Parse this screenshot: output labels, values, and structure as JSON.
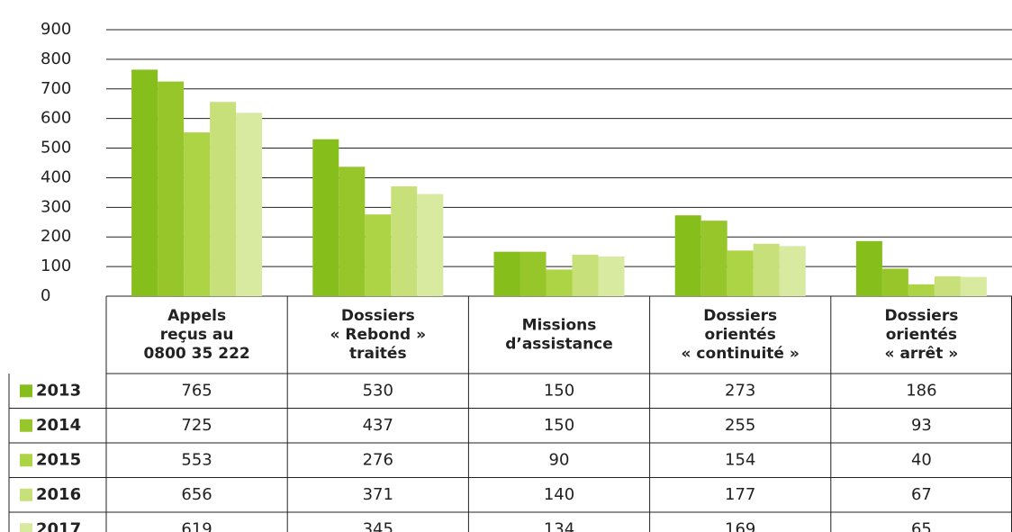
{
  "chart_data": {
    "type": "bar",
    "categories": [
      "Appels\nreçus au\n0800 35 222",
      "Dossiers\n« Rebond »\ntraités",
      "Missions\nd’assistance",
      "Dossiers\norientés\n« continuité »",
      "Dossiers\norientés\n« arrêt »"
    ],
    "series": [
      {
        "name": "2013",
        "color": "#86be1c",
        "values": [
          765,
          530,
          150,
          273,
          186
        ]
      },
      {
        "name": "2014",
        "color": "#97c62a",
        "values": [
          725,
          437,
          150,
          255,
          93
        ]
      },
      {
        "name": "2015",
        "color": "#add444",
        "values": [
          553,
          276,
          90,
          154,
          40
        ]
      },
      {
        "name": "2016",
        "color": "#c7e07a",
        "values": [
          656,
          371,
          140,
          177,
          67
        ]
      },
      {
        "name": "2017",
        "color": "#d8e9a0",
        "values": [
          619,
          345,
          134,
          169,
          65
        ]
      }
    ],
    "ylim": [
      0,
      900
    ],
    "yticks": [
      0,
      100,
      200,
      300,
      400,
      500,
      600,
      700,
      800,
      900
    ],
    "grid": true
  }
}
